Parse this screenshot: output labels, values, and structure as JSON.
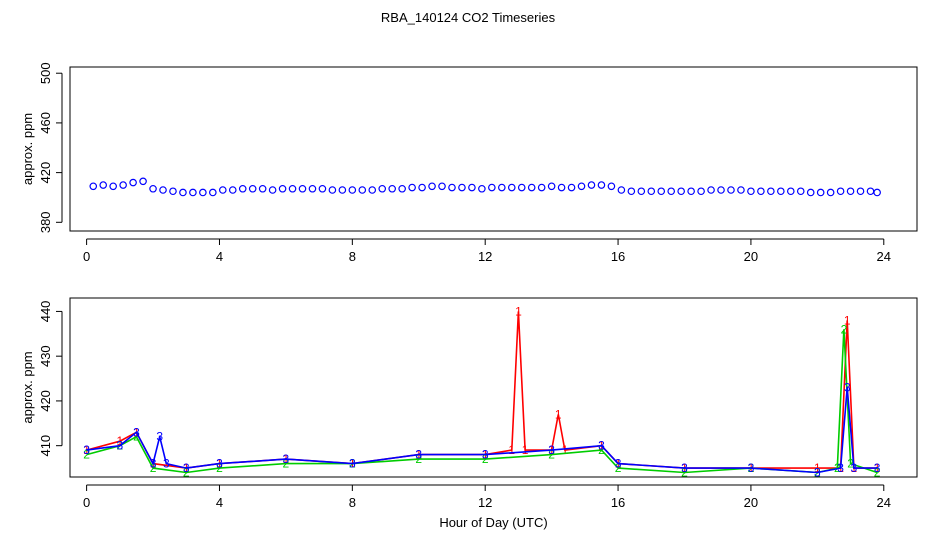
{
  "chart_data": [
    {
      "type": "scatter",
      "title": "RBA_140124  CO2 Timeseries",
      "xlabel": "",
      "ylabel": "approx. ppm",
      "xlim": [
        -0.5,
        25.0
      ],
      "ylim": [
        373,
        505
      ],
      "xticks": [
        0,
        4,
        8,
        12,
        16,
        20,
        24
      ],
      "yticks": [
        380,
        420,
        460,
        500
      ],
      "series": [
        {
          "color": "#0000ff",
          "x": [
            0.2,
            0.5,
            0.8,
            1.1,
            1.4,
            1.7,
            2.0,
            2.3,
            2.6,
            2.9,
            3.2,
            3.5,
            3.8,
            4.1,
            4.4,
            4.7,
            5.0,
            5.3,
            5.6,
            5.9,
            6.2,
            6.5,
            6.8,
            7.1,
            7.4,
            7.7,
            8.0,
            8.3,
            8.6,
            8.9,
            9.2,
            9.5,
            9.8,
            10.1,
            10.4,
            10.7,
            11.0,
            11.3,
            11.6,
            11.9,
            12.2,
            12.5,
            12.8,
            13.1,
            13.4,
            13.7,
            14.0,
            14.3,
            14.6,
            14.9,
            15.2,
            15.5,
            15.8,
            16.1,
            16.4,
            16.7,
            17.0,
            17.3,
            17.6,
            17.9,
            18.2,
            18.5,
            18.8,
            19.1,
            19.4,
            19.7,
            20.0,
            20.3,
            20.6,
            20.9,
            21.2,
            21.5,
            21.8,
            22.1,
            22.4,
            22.7,
            23.0,
            23.3,
            23.6,
            23.8
          ],
          "y": [
            409,
            410,
            409,
            410,
            412,
            413,
            407,
            406,
            405,
            404,
            404,
            404,
            404,
            406,
            406,
            407,
            407,
            407,
            406,
            407,
            407,
            407,
            407,
            407,
            406,
            406,
            406,
            406,
            406,
            407,
            407,
            407,
            408,
            408,
            409,
            409,
            408,
            408,
            408,
            407,
            408,
            408,
            408,
            408,
            408,
            408,
            409,
            408,
            408,
            409,
            410,
            410,
            409,
            406,
            405,
            405,
            405,
            405,
            405,
            405,
            405,
            405,
            406,
            406,
            406,
            406,
            405,
            405,
            405,
            405,
            405,
            405,
            404,
            404,
            404,
            405,
            405,
            405,
            405,
            404
          ]
        }
      ]
    },
    {
      "type": "line",
      "title": "",
      "xlabel": "Hour of Day (UTC)",
      "ylabel": "approx. ppm",
      "xlim": [
        -0.5,
        25.0
      ],
      "ylim": [
        403,
        443
      ],
      "xticks": [
        0,
        4,
        8,
        12,
        16,
        20,
        24
      ],
      "yticks": [
        410,
        420,
        430,
        440
      ],
      "series": [
        {
          "name": "1",
          "color": "#ff0000",
          "x": [
            0.0,
            1.0,
            1.5,
            2.0,
            3.0,
            4.0,
            6.0,
            8.0,
            10.0,
            12.0,
            12.8,
            13.0,
            13.2,
            14.0,
            14.2,
            14.4,
            15.5,
            16.0,
            18.0,
            20.0,
            22.0,
            22.7,
            22.9,
            23.1,
            23.8
          ],
          "y": [
            409,
            411,
            413,
            406,
            405,
            406,
            407,
            406,
            408,
            408,
            409,
            440,
            409,
            409,
            417,
            409,
            410,
            406,
            405,
            405,
            405,
            405,
            438,
            405,
            405
          ]
        },
        {
          "name": "2",
          "color": "#00cc00",
          "x": [
            0.0,
            1.0,
            1.5,
            2.0,
            3.0,
            4.0,
            6.0,
            8.0,
            10.0,
            12.0,
            14.0,
            15.5,
            16.0,
            18.0,
            20.0,
            22.0,
            22.6,
            22.8,
            23.0,
            23.8
          ],
          "y": [
            408,
            410,
            412,
            405,
            404,
            405,
            406,
            406,
            407,
            407,
            408,
            409,
            405,
            404,
            405,
            404,
            405,
            436,
            406,
            404
          ]
        },
        {
          "name": "3",
          "color": "#0000ff",
          "x": [
            0.0,
            1.0,
            1.5,
            2.0,
            2.2,
            2.4,
            3.0,
            4.0,
            6.0,
            8.0,
            10.0,
            12.0,
            14.0,
            15.5,
            16.0,
            18.0,
            20.0,
            22.0,
            22.7,
            22.9,
            23.1,
            23.8
          ],
          "y": [
            409,
            410,
            413,
            406,
            412,
            406,
            405,
            406,
            407,
            406,
            408,
            408,
            409,
            410,
            406,
            405,
            405,
            404,
            405,
            423,
            405,
            405
          ]
        }
      ]
    }
  ]
}
